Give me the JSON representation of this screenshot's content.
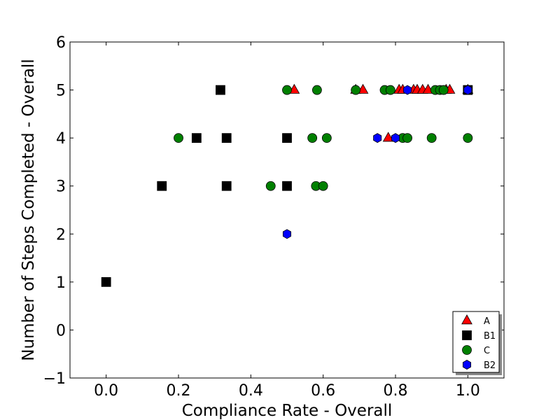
{
  "chart_data": {
    "type": "scatter",
    "title": "",
    "xlabel": "Compliance Rate - Overall",
    "ylabel": "Number of Steps Completed - Overall",
    "xlim": [
      -0.1,
      1.1
    ],
    "ylim": [
      -1,
      6
    ],
    "xticks": [
      0.0,
      0.2,
      0.4,
      0.6,
      0.8,
      1.0
    ],
    "xtick_labels": [
      "0.0",
      "0.2",
      "0.4",
      "0.6",
      "0.8",
      "1.0"
    ],
    "yticks": [
      -1,
      0,
      1,
      2,
      3,
      4,
      5,
      6
    ],
    "ytick_labels": [
      "−1",
      "0",
      "1",
      "2",
      "3",
      "4",
      "5",
      "6"
    ],
    "grid": false,
    "legend_position": "lower-right",
    "series": [
      {
        "name": "A",
        "marker": "triangle",
        "color": "#ff0000",
        "points": [
          [
            0.52,
            5
          ],
          [
            0.69,
            5
          ],
          [
            0.71,
            5
          ],
          [
            0.78,
            4
          ],
          [
            0.81,
            5
          ],
          [
            0.82,
            5
          ],
          [
            0.85,
            5
          ],
          [
            0.86,
            5
          ],
          [
            0.875,
            5
          ],
          [
            0.89,
            5
          ],
          [
            0.94,
            5
          ],
          [
            0.95,
            5
          ],
          [
            1.0,
            5
          ]
        ]
      },
      {
        "name": "B1",
        "marker": "square",
        "color": "#000000",
        "points": [
          [
            0.0,
            1
          ],
          [
            0.154,
            3
          ],
          [
            0.25,
            4
          ],
          [
            0.316,
            5
          ],
          [
            0.333,
            4
          ],
          [
            0.333,
            3
          ],
          [
            0.5,
            4
          ],
          [
            0.5,
            3
          ],
          [
            1.0,
            5
          ]
        ]
      },
      {
        "name": "C",
        "marker": "circle",
        "color": "#008000",
        "points": [
          [
            0.2,
            4
          ],
          [
            0.455,
            3
          ],
          [
            0.5,
            5
          ],
          [
            0.57,
            4
          ],
          [
            0.58,
            3
          ],
          [
            0.583,
            5
          ],
          [
            0.6,
            3
          ],
          [
            0.61,
            4
          ],
          [
            0.69,
            5
          ],
          [
            0.77,
            5
          ],
          [
            0.786,
            5
          ],
          [
            0.82,
            4
          ],
          [
            0.833,
            4
          ],
          [
            0.9,
            4
          ],
          [
            0.91,
            5
          ],
          [
            0.923,
            5
          ],
          [
            0.933,
            5
          ],
          [
            1.0,
            4
          ]
        ]
      },
      {
        "name": "B2",
        "marker": "hexagon",
        "color": "#0000ff",
        "points": [
          [
            0.5,
            2
          ],
          [
            0.75,
            4
          ],
          [
            0.8,
            4
          ],
          [
            0.833,
            5
          ],
          [
            1.0,
            5
          ]
        ]
      }
    ]
  }
}
